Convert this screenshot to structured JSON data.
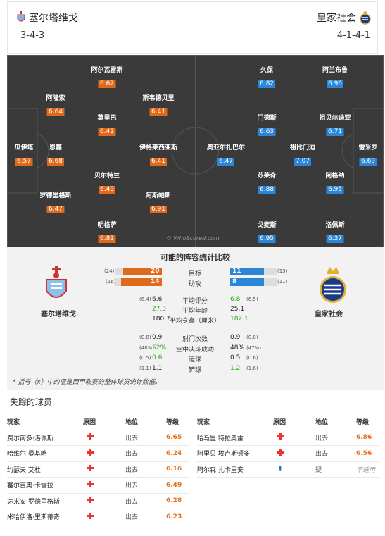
{
  "header": {
    "home_team": "塞尔塔维戈",
    "away_team": "皇家社会",
    "home_formation": "3-4-3",
    "away_formation": "4-1-4-1"
  },
  "pitch": {
    "watermark": "© WhoScored.com",
    "home_players": [
      {
        "name": "瓜伊塔",
        "rating": "6.57"
      },
      {
        "name": "阿隆索",
        "rating": "6.64"
      },
      {
        "name": "恩嘉",
        "rating": "6.68"
      },
      {
        "name": "罗德里格斯",
        "rating": "6.47"
      },
      {
        "name": "阿尔瓦雷斯",
        "rating": "6.62"
      },
      {
        "name": "莫里巴",
        "rating": "6.42"
      },
      {
        "name": "贝尔特兰",
        "rating": "6.49"
      },
      {
        "name": "明格萨",
        "rating": "6.82"
      },
      {
        "name": "斯韦德贝里",
        "rating": "6.41"
      },
      {
        "name": "伊格莱西亚斯",
        "rating": "6.41"
      },
      {
        "name": "阿斯帕斯",
        "rating": "6.91"
      }
    ],
    "away_players": [
      {
        "name": "雷米罗",
        "rating": "6.69"
      },
      {
        "name": "阿兰布鲁",
        "rating": "6.96"
      },
      {
        "name": "祖贝尔迪亚",
        "rating": "6.71"
      },
      {
        "name": "祖比门迪",
        "rating": "7.07"
      },
      {
        "name": "阿格纳",
        "rating": "6.95"
      },
      {
        "name": "洛佩斯",
        "rating": "6.37"
      },
      {
        "name": "久保",
        "rating": "6.82"
      },
      {
        "name": "门德斯",
        "rating": "6.63"
      },
      {
        "name": "奥亚尔扎巴尔",
        "rating": "6.47"
      },
      {
        "name": "苏莱奇",
        "rating": "6.88"
      },
      {
        "name": "戈麦斯",
        "rating": "6.95"
      }
    ]
  },
  "stats": {
    "title": "可能的阵容统计比较",
    "home_label": "塞尔塔维戈",
    "away_label": "皇家社会",
    "goals": {
      "label": "目标",
      "home": "20",
      "home_prev": "(24)",
      "away": "11",
      "away_prev": "(15)",
      "home_frac": 0.83,
      "away_frac": 0.73
    },
    "assists": {
      "label": "助攻",
      "home": "14",
      "home_prev": "(16)",
      "away": "8",
      "away_prev": "(11)",
      "home_frac": 0.88,
      "away_frac": 0.73
    },
    "rows_a": [
      {
        "label": "平均评分",
        "home_prev": "(6.4)",
        "home": "6.6",
        "home_green": false,
        "away": "6.8",
        "away_green": true,
        "away_prev": "(6.5)"
      },
      {
        "label": "平均年龄",
        "home_prev": "",
        "home": "27.3",
        "home_green": true,
        "away": "25.1",
        "away_green": false,
        "away_prev": ""
      },
      {
        "label": "平均身高（厘米）",
        "home_prev": "",
        "home": "180.7",
        "home_green": false,
        "away": "182.1",
        "away_green": true,
        "away_prev": ""
      }
    ],
    "rows_b": [
      {
        "label": "射门次数",
        "home_prev": "(0.8)",
        "home": "0.9",
        "home_green": false,
        "away": "0.9",
        "away_green": false,
        "away_prev": "(0.8)"
      },
      {
        "label": "空中决斗成功",
        "home_prev": "(48%)",
        "home": "52%",
        "home_green": true,
        "away": "48%",
        "away_green": false,
        "away_prev": "(47%)"
      },
      {
        "label": "运球",
        "home_prev": "(0.5)",
        "home": "0.6",
        "home_green": true,
        "away": "0.5",
        "away_green": false,
        "away_prev": "(0.6)"
      },
      {
        "label": "铲球",
        "home_prev": "(1.1)",
        "home": "1.1",
        "home_green": false,
        "away": "1.2",
        "away_green": true,
        "away_prev": "(1.6)"
      }
    ],
    "footnote": "* 括号（x）中的值是西甲联赛的整体球员统计数据。"
  },
  "missing": {
    "title": "失踪的球员",
    "headers": [
      "玩家",
      "原因",
      "地位",
      "等级"
    ],
    "home": [
      {
        "player": "费尔南多·洛佩斯",
        "reason": "injury",
        "status": "出去",
        "rating": "6.65"
      },
      {
        "player": "哈维尔·曼基略",
        "reason": "injury",
        "status": "出去",
        "rating": "6.24"
      },
      {
        "player": "约瑟夫·艾杜",
        "reason": "injury",
        "status": "出去",
        "rating": "6.16"
      },
      {
        "player": "塞尔吉奥·卡雷拉",
        "reason": "injury",
        "status": "出去",
        "rating": "6.49"
      },
      {
        "player": "达米安·罗德里格斯",
        "reason": "injury",
        "status": "出去",
        "rating": "6.28"
      },
      {
        "player": "米哈伊洛·里斯蒂奇",
        "reason": "injury",
        "status": "出去",
        "rating": "6.23"
      }
    ],
    "away": [
      {
        "player": "哈马里·特拉奥雷",
        "reason": "injury",
        "status": "出去",
        "rating": "6.86",
        "rating_style": "orange"
      },
      {
        "player": "阿里贝·埃卢斯顿多",
        "reason": "injury",
        "status": "出去",
        "rating": "6.56",
        "rating_style": "orange"
      },
      {
        "player": "阿尔森·扎卡里安",
        "reason": "doubt",
        "status": "疑",
        "rating": "不适用",
        "rating_style": "grey"
      }
    ]
  }
}
